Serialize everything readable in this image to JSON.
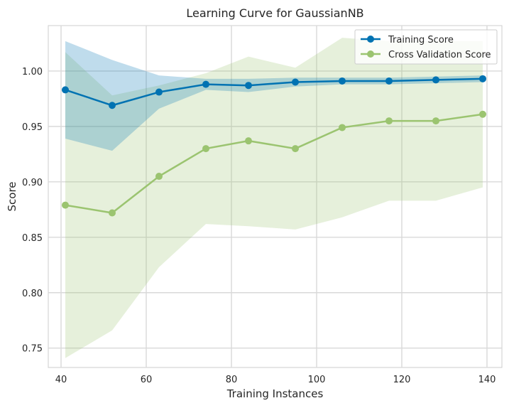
{
  "chart_data": {
    "type": "line",
    "title": "Learning Curve for GaussianNB",
    "xlabel": "Training Instances",
    "ylabel": "Score",
    "xlim": [
      37,
      143.5
    ],
    "ylim": [
      0.7325,
      1.041
    ],
    "xticks": [
      40,
      60,
      80,
      100,
      120,
      140
    ],
    "yticks": [
      0.75,
      0.8,
      0.85,
      0.9,
      0.95,
      1.0
    ],
    "grid": true,
    "legend_position": "top-right",
    "x": [
      41,
      52,
      63,
      74,
      84,
      95,
      106,
      117,
      128,
      139
    ],
    "series": [
      {
        "name": "Training Score",
        "color": "#0072B2",
        "band_color": "#0072B2",
        "values": [
          0.983,
          0.969,
          0.981,
          0.988,
          0.987,
          0.99,
          0.991,
          0.991,
          0.992,
          0.993
        ],
        "lower": [
          0.939,
          0.928,
          0.966,
          0.983,
          0.981,
          0.986,
          0.988,
          0.988,
          0.989,
          0.99
        ],
        "upper": [
          1.027,
          1.01,
          0.996,
          0.993,
          0.993,
          0.994,
          0.994,
          0.994,
          0.995,
          0.996
        ]
      },
      {
        "name": "Cross Validation Score",
        "color": "#9BC470",
        "band_color": "#9BC470",
        "values": [
          0.879,
          0.872,
          0.905,
          0.93,
          0.937,
          0.93,
          0.949,
          0.955,
          0.955,
          0.961
        ],
        "lower": [
          0.741,
          0.766,
          0.823,
          0.862,
          0.86,
          0.857,
          0.868,
          0.883,
          0.883,
          0.895
        ],
        "upper": [
          1.017,
          0.978,
          0.987,
          0.998,
          1.013,
          1.003,
          1.03,
          1.027,
          1.027,
          1.027
        ]
      }
    ]
  }
}
